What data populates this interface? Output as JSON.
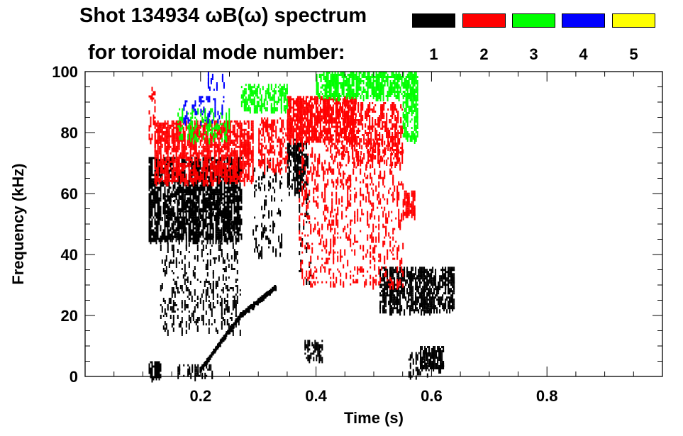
{
  "chart_data": {
    "type": "heatmap",
    "title_line1": "Shot 134934 ωB(ω) spectrum",
    "title_line2": "for toroidal mode number:",
    "xlabel": "Time (s)",
    "ylabel": "Frequency (kHz)",
    "xlim": [
      0.0,
      1.0
    ],
    "ylim": [
      0,
      100
    ],
    "xticks": [
      0.2,
      0.4,
      0.6,
      0.8
    ],
    "yticks": [
      0,
      20,
      40,
      60,
      80,
      100
    ],
    "grid": false,
    "legend_position": "top",
    "modes": [
      {
        "n": "1",
        "color": "#000000"
      },
      {
        "n": "2",
        "color": "#ff0000"
      },
      {
        "n": "3",
        "color": "#00ff00"
      },
      {
        "n": "4",
        "color": "#0000ff"
      },
      {
        "n": "5",
        "color": "#ffff00"
      }
    ],
    "regions": [
      {
        "mode": "1",
        "t": [
          0.11,
          0.27
        ],
        "f": [
          45,
          72
        ],
        "density": 0.55
      },
      {
        "mode": "1",
        "t": [
          0.13,
          0.27
        ],
        "f": [
          15,
          60
        ],
        "density": 0.14
      },
      {
        "mode": "1",
        "t": [
          0.11,
          0.13
        ],
        "f": [
          0,
          5
        ],
        "density": 0.5
      },
      {
        "mode": "1",
        "t": [
          0.16,
          0.22
        ],
        "f": [
          0,
          4
        ],
        "density": 0.25
      },
      {
        "mode": "1",
        "t": [
          0.29,
          0.34
        ],
        "f": [
          40,
          72
        ],
        "density": 0.1
      },
      {
        "mode": "1",
        "t": [
          0.35,
          0.385
        ],
        "f": [
          60,
          78
        ],
        "density": 0.5
      },
      {
        "mode": "1",
        "t": [
          0.37,
          0.39
        ],
        "f": [
          30,
          60
        ],
        "density": 0.06
      },
      {
        "mode": "1",
        "t": [
          0.38,
          0.41
        ],
        "f": [
          6,
          12
        ],
        "density": 0.35
      },
      {
        "mode": "1",
        "t": [
          0.51,
          0.64
        ],
        "f": [
          22,
          36
        ],
        "density": 0.55
      },
      {
        "mode": "1",
        "t": [
          0.58,
          0.62
        ],
        "f": [
          3,
          10
        ],
        "density": 0.55
      },
      {
        "mode": "1",
        "t": [
          0.56,
          0.6
        ],
        "f": [
          0,
          8
        ],
        "density": 0.2
      },
      {
        "mode": "2",
        "t": [
          0.12,
          0.29
        ],
        "f": [
          64,
          84
        ],
        "density": 0.5
      },
      {
        "mode": "2",
        "t": [
          0.3,
          0.35
        ],
        "f": [
          68,
          85
        ],
        "density": 0.35
      },
      {
        "mode": "2",
        "t": [
          0.35,
          0.47
        ],
        "f": [
          78,
          92
        ],
        "density": 0.6
      },
      {
        "mode": "2",
        "t": [
          0.37,
          0.55
        ],
        "f": [
          30,
          78
        ],
        "density": 0.12
      },
      {
        "mode": "2",
        "t": [
          0.44,
          0.55
        ],
        "f": [
          70,
          90
        ],
        "density": 0.35
      },
      {
        "mode": "2",
        "t": [
          0.55,
          0.57
        ],
        "f": [
          53,
          61
        ],
        "density": 0.6
      },
      {
        "mode": "2",
        "t": [
          0.11,
          0.12
        ],
        "f": [
          78,
          95
        ],
        "density": 0.25
      },
      {
        "mode": "3",
        "t": [
          0.27,
          0.35
        ],
        "f": [
          88,
          96
        ],
        "density": 0.45
      },
      {
        "mode": "3",
        "t": [
          0.4,
          0.57
        ],
        "f": [
          92,
          100
        ],
        "density": 0.55
      },
      {
        "mode": "3",
        "t": [
          0.55,
          0.575
        ],
        "f": [
          78,
          100
        ],
        "density": 0.5
      },
      {
        "mode": "3",
        "t": [
          0.16,
          0.25
        ],
        "f": [
          78,
          88
        ],
        "density": 0.2
      },
      {
        "mode": "4",
        "t": [
          0.17,
          0.24
        ],
        "f": [
          83,
          92
        ],
        "density": 0.12
      },
      {
        "mode": "4",
        "t": [
          0.21,
          0.24
        ],
        "f": [
          94,
          100
        ],
        "density": 0.15
      }
    ],
    "chirps": [
      {
        "mode": "1",
        "t": [
          0.2,
          0.27
        ],
        "f": [
          2,
          20
        ]
      },
      {
        "mode": "1",
        "t": [
          0.27,
          0.33
        ],
        "f": [
          20,
          29
        ]
      }
    ]
  }
}
